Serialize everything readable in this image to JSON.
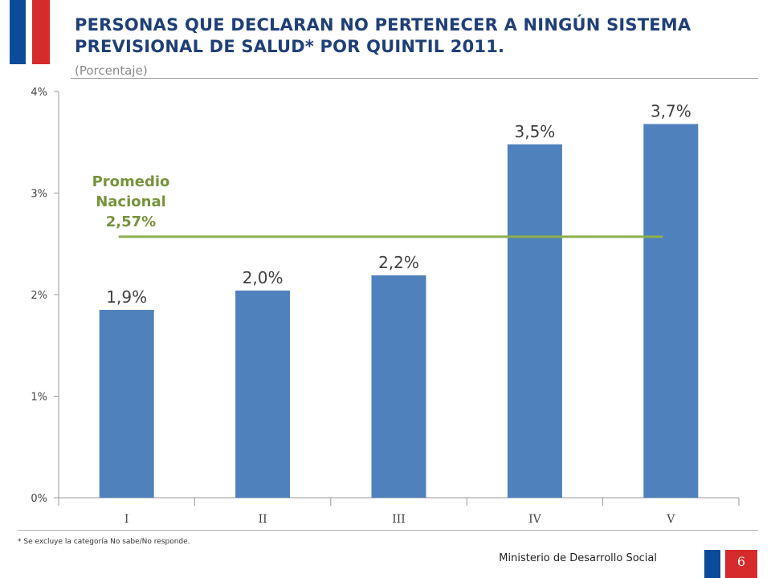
{
  "slide": {
    "title": "PERSONAS QUE DECLARAN NO PERTENECER A NINGÚN SISTEMA PREVISIONAL DE SALUD* POR QUINTIL 2011.",
    "subtitle": "(Porcentaje)",
    "footnote": "* Se excluye la categoría No sabe/No responde.",
    "ministry": "Ministerio de Desarrollo Social",
    "page_number": "6"
  },
  "colors": {
    "bar": "#4f81bd",
    "average_line": "#8db04a",
    "average_text": "#77933c",
    "flag_blue": "#0a4b9a",
    "flag_red": "#d52b2b"
  },
  "chart_data": {
    "type": "bar",
    "categories": [
      "I",
      "II",
      "III",
      "IV",
      "V"
    ],
    "values": [
      1.85,
      2.04,
      2.19,
      3.48,
      3.68
    ],
    "data_labels": [
      "1,9%",
      "2,0%",
      "2,2%",
      "3,5%",
      "3,7%"
    ],
    "ylim": [
      0,
      4
    ],
    "y_ticks": [
      0,
      1,
      2,
      3,
      4
    ],
    "y_tick_labels": [
      "0%",
      "1%",
      "2%",
      "3%",
      "4%"
    ],
    "grid": false,
    "average": {
      "value": 2.57,
      "label_lines": [
        "Promedio",
        "Nacional",
        "2,57%"
      ]
    }
  }
}
